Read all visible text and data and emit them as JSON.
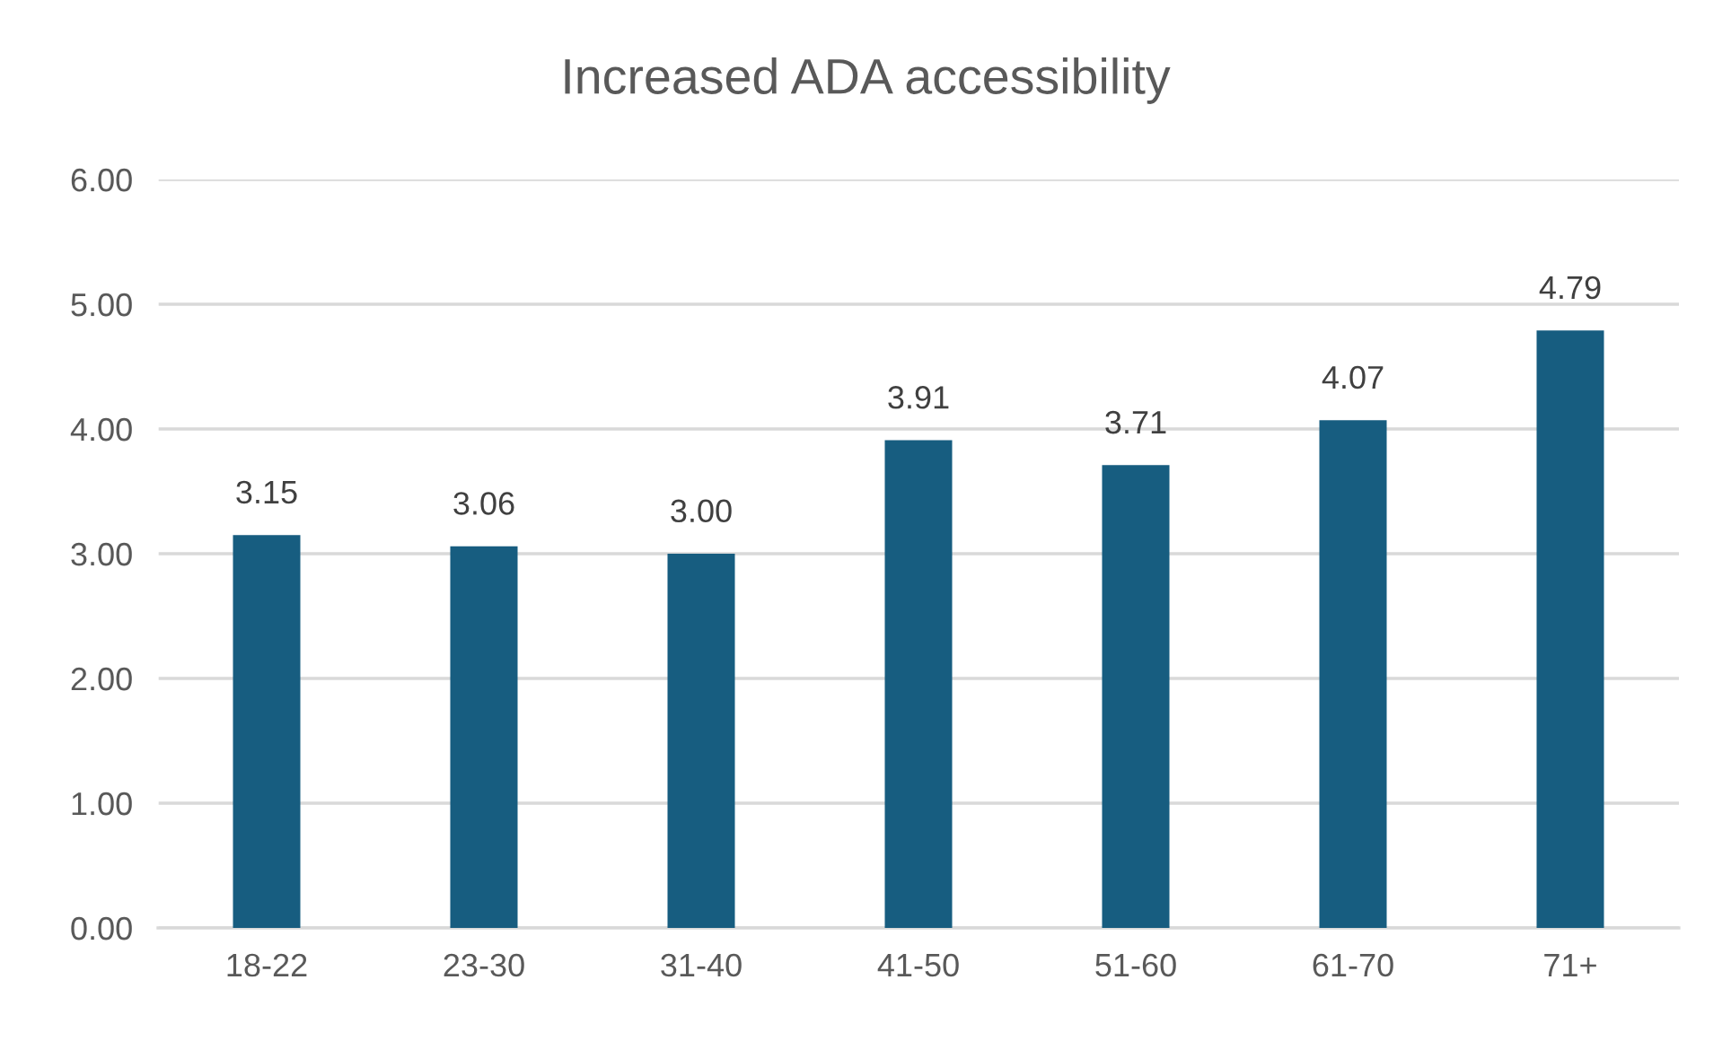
{
  "chart_data": {
    "type": "bar",
    "title": "Increased ADA accessibility",
    "categories": [
      "18-22",
      "23-30",
      "31-40",
      "41-50",
      "51-60",
      "61-70",
      "71+"
    ],
    "values": [
      3.15,
      3.06,
      3.0,
      3.91,
      3.71,
      4.07,
      4.79
    ],
    "value_labels": [
      "3.15",
      "3.06",
      "3.00",
      "3.91",
      "3.71",
      "4.07",
      "4.79"
    ],
    "color": "#175d80",
    "ylim": [
      0,
      6
    ],
    "yticks": [
      {
        "value": 0,
        "label": "0.00"
      },
      {
        "value": 1,
        "label": "1.00"
      },
      {
        "value": 2,
        "label": "2.00"
      },
      {
        "value": 3,
        "label": "3.00"
      },
      {
        "value": 4,
        "label": "4.00"
      },
      {
        "value": 5,
        "label": "5.00"
      },
      {
        "value": 6,
        "label": "6.00"
      }
    ],
    "grid": "y"
  }
}
